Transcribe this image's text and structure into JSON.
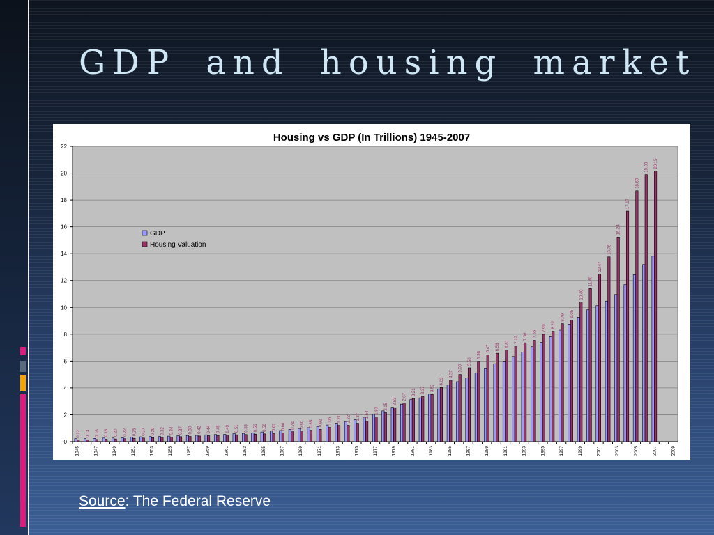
{
  "slide": {
    "title": "GDP and housing market",
    "source_label": "Source",
    "source_text": ": The Federal Reserve"
  },
  "colors": {
    "gdp": "#9999ff",
    "housing": "#993366",
    "plot_bg": "#c0c0c0",
    "accent_pink": "#e0197d",
    "accent_orange": "#f5a400",
    "accent_slate": "#5a6a7e"
  },
  "chart_data": {
    "type": "bar",
    "title": "Housing vs GDP (In Trillions)    1945-2007",
    "xlabel": "",
    "ylabel": "",
    "ylim": [
      0,
      22
    ],
    "yticks": [
      0,
      2,
      4,
      6,
      8,
      10,
      12,
      14,
      16,
      18,
      20,
      22
    ],
    "grid": true,
    "legend": "upper-left",
    "categories": [
      "1945",
      "1946",
      "1947",
      "1948",
      "1949",
      "1950",
      "1951",
      "1952",
      "1953",
      "1954",
      "1955",
      "1956",
      "1957",
      "1958",
      "1959",
      "1960",
      "1961",
      "1962",
      "1963",
      "1964",
      "1965",
      "1966",
      "1967",
      "1968",
      "1969",
      "1970",
      "1971",
      "1972",
      "1973",
      "1974",
      "1975",
      "1976",
      "1977",
      "1978",
      "1979",
      "1980",
      "1981",
      "1982",
      "1983",
      "1984",
      "1985",
      "1986",
      "1987",
      "1988",
      "1989",
      "1990",
      "1991",
      "1992",
      "1993",
      "1994",
      "1995",
      "1996",
      "1997",
      "1998",
      "1999",
      "2000",
      "2001",
      "2002",
      "2003",
      "2004",
      "2005",
      "2006",
      "2007",
      "2008",
      "2009"
    ],
    "xtick_labels": [
      "1945",
      "",
      "1947",
      "",
      "1949",
      "",
      "1951",
      "",
      "1953",
      "",
      "1955",
      "",
      "1957",
      "",
      "1959",
      "",
      "1961",
      "",
      "1963",
      "",
      "1965",
      "",
      "1967",
      "",
      "1969",
      "",
      "1971",
      "",
      "1973",
      "",
      "1975",
      "",
      "1977",
      "",
      "1979",
      "",
      "1981",
      "",
      "1983",
      "",
      "1985",
      "",
      "1987",
      "",
      "1989",
      "",
      "1991",
      "",
      "1993",
      "",
      "1995",
      "",
      "1997",
      "",
      "1999",
      "",
      "2001",
      "",
      "2003",
      "",
      "2005",
      "",
      "2007",
      "",
      "2009"
    ],
    "series": [
      {
        "name": "GDP",
        "values": [
          0.22,
          0.22,
          0.24,
          0.27,
          0.27,
          0.29,
          0.34,
          0.36,
          0.38,
          0.38,
          0.41,
          0.44,
          0.46,
          0.47,
          0.51,
          0.53,
          0.54,
          0.59,
          0.62,
          0.66,
          0.72,
          0.79,
          0.83,
          0.91,
          0.98,
          1.04,
          1.13,
          1.24,
          1.38,
          1.5,
          1.64,
          1.82,
          2.03,
          2.29,
          2.56,
          2.79,
          3.13,
          3.26,
          3.54,
          3.93,
          4.22,
          4.46,
          4.74,
          5.1,
          5.48,
          5.8,
          5.99,
          6.34,
          6.66,
          7.07,
          7.4,
          7.82,
          8.3,
          8.75,
          9.27,
          9.82,
          10.13,
          10.47,
          10.96,
          11.69,
          12.43,
          13.19,
          13.81,
          null,
          null
        ]
      },
      {
        "name": "Housing Valuation",
        "values": [
          0.12,
          0.13,
          0.16,
          0.18,
          0.2,
          0.22,
          0.25,
          0.27,
          0.29,
          0.32,
          0.34,
          0.37,
          0.39,
          0.42,
          0.44,
          0.46,
          0.49,
          0.51,
          0.53,
          0.56,
          0.58,
          0.62,
          0.66,
          0.74,
          0.8,
          0.85,
          0.92,
          1.06,
          1.21,
          1.22,
          1.37,
          1.54,
          1.83,
          2.15,
          2.53,
          2.87,
          3.21,
          3.37,
          3.52,
          4.03,
          4.57,
          5.0,
          5.5,
          5.98,
          6.47,
          6.58,
          6.81,
          7.12,
          7.36,
          7.55,
          7.99,
          8.22,
          8.79,
          9.05,
          10.4,
          11.4,
          12.47,
          13.76,
          15.24,
          17.17,
          18.69,
          19.89,
          20.15,
          null,
          null
        ],
        "data_labels": [
          "0.12",
          "0.13",
          "0.16",
          "0.18",
          "0.20",
          "0.22",
          "0.25",
          "0.27",
          "0.29",
          "0.32",
          "0.34",
          "0.37",
          "0.39",
          "0.42",
          "0.44",
          "0.46",
          "0.49",
          "0.51",
          "0.53",
          "0.56",
          "0.58",
          "0.62",
          "0.66",
          "0.74",
          "0.80",
          "0.85",
          "0.92",
          "1.06",
          "1.21",
          "1.22",
          "1.37",
          "1.54",
          "1.83",
          "2.15",
          "2.53",
          "2.87",
          "3.21",
          "3.37",
          "3.52",
          "4.03",
          "4.57",
          "5.00",
          "5.50",
          "5.98",
          "6.47",
          "6.58",
          "6.81",
          "7.12",
          "7.36",
          "7.55",
          "7.99",
          "8.22",
          "8.79",
          "9.05",
          "10.40",
          "11.40",
          "12.47",
          "13.76",
          "15.24",
          "17.17",
          "18.69",
          "19.89",
          "20.15",
          "",
          ""
        ]
      }
    ]
  }
}
